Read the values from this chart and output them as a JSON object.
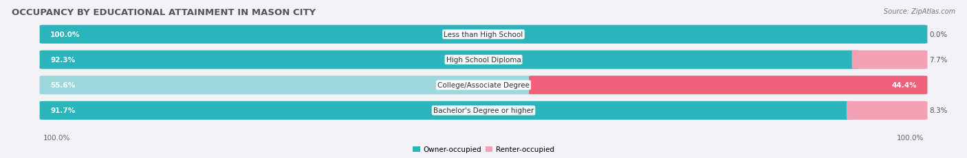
{
  "title": "OCCUPANCY BY EDUCATIONAL ATTAINMENT IN MASON CITY",
  "source": "Source: ZipAtlas.com",
  "categories": [
    "Less than High School",
    "High School Diploma",
    "College/Associate Degree",
    "Bachelor's Degree or higher"
  ],
  "owner_pct": [
    100.0,
    92.3,
    55.6,
    91.7
  ],
  "renter_pct": [
    0.0,
    7.7,
    44.4,
    8.3
  ],
  "owner_color_dark": "#29b5bb",
  "owner_color_light": "#9dd8dc",
  "renter_color_dark": "#f0607a",
  "renter_color_light": "#f4a0b5",
  "bg_color": "#f2f2f7",
  "bar_bg_color": "#dcdce8",
  "legend_owner": "Owner-occupied",
  "legend_renter": "Renter-occupied",
  "axis_label_left": "100.0%",
  "axis_label_right": "100.0%",
  "title_fontsize": 9.5,
  "bar_label_fontsize": 7.5,
  "cat_label_fontsize": 7.5,
  "source_fontsize": 7.0
}
